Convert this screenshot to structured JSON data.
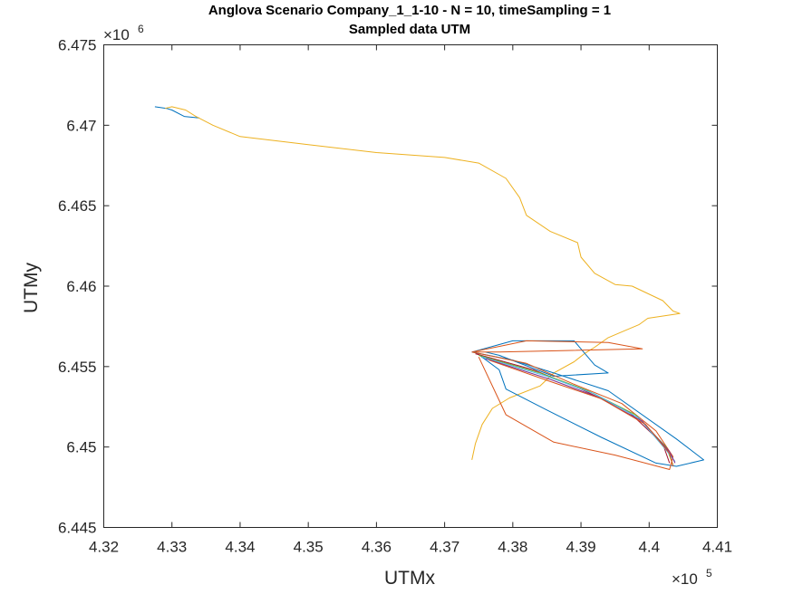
{
  "chart_data": {
    "type": "line",
    "title": "Anglova Scenario Company_1_1-10 - N = 10, timeSampling = 1",
    "subtitle": "Sampled data UTM",
    "xlabel": "UTMx",
    "ylabel": "UTMy",
    "xlim": [
      432000,
      441000
    ],
    "ylim": [
      6445000,
      6475000
    ],
    "x_ticks": [
      432000,
      433000,
      434000,
      435000,
      436000,
      437000,
      438000,
      439000,
      440000,
      441000
    ],
    "x_tick_labels": [
      "4.32",
      "4.33",
      "4.34",
      "4.35",
      "4.36",
      "4.37",
      "4.38",
      "4.39",
      "4.4",
      "4.41"
    ],
    "y_ticks": [
      6445000,
      6450000,
      6455000,
      6460000,
      6465000,
      6470000,
      6475000
    ],
    "y_tick_labels": [
      "6.445",
      "6.45",
      "6.455",
      "6.46",
      "6.465",
      "6.47",
      "6.475"
    ],
    "x_exponent": "×10",
    "x_exponent_power": "5",
    "y_exponent": "×10",
    "y_exponent_power": "6",
    "grid": false,
    "colors": [
      "#0072BD",
      "#D95319",
      "#EDB120",
      "#7E2F8E",
      "#77AC30",
      "#4DBEEE",
      "#A2142F"
    ],
    "series": [
      {
        "color": "#0072BD",
        "x": [
          432750,
          432920,
          433000,
          433180,
          433400
        ],
        "y": [
          6471150,
          6471050,
          6470950,
          6470550,
          6470450
        ]
      },
      {
        "color": "#EDB120",
        "x": [
          432900,
          433000,
          433200,
          433350,
          433600,
          434000,
          435000,
          436000,
          437000,
          437500,
          437900,
          438100,
          438200,
          438550,
          438950,
          439000,
          439200,
          439500,
          439750,
          440200,
          440350,
          440450,
          439980,
          439850,
          439650,
          439400,
          439200,
          439050,
          438900,
          438600,
          438400,
          437950,
          437700,
          437550,
          437450,
          437400
        ],
        "y": [
          6471050,
          6471150,
          6470950,
          6470550,
          6470000,
          6469300,
          6468800,
          6468300,
          6468000,
          6467650,
          6466700,
          6465500,
          6464400,
          6463400,
          6462700,
          6461800,
          6460800,
          6460100,
          6460000,
          6459100,
          6458450,
          6458300,
          6458000,
          6457600,
          6457250,
          6456800,
          6456200,
          6455800,
          6455300,
          6454600,
          6453800,
          6453050,
          6452400,
          6451400,
          6450200,
          6449200
        ]
      },
      {
        "color": "#0072BD",
        "x": [
          437400,
          438000,
          438300,
          438900,
          439200,
          439400,
          438600,
          437800,
          437600
        ],
        "y": [
          6455900,
          6456600,
          6456600,
          6456600,
          6455100,
          6454600,
          6454400,
          6455700,
          6455900
        ]
      },
      {
        "color": "#D95319",
        "x": [
          437400,
          438200,
          439400,
          439900,
          438800,
          437800,
          437400
        ],
        "y": [
          6455900,
          6456600,
          6456500,
          6456100,
          6456000,
          6455900,
          6455900
        ]
      },
      {
        "color": "#0072BD",
        "x": [
          437400,
          438000,
          438600,
          439400,
          440400,
          440800,
          440400,
          440100,
          439300,
          438500,
          437900,
          437800,
          437450
        ],
        "y": [
          6455900,
          6455400,
          6454600,
          6453500,
          6450500,
          6449200,
          6448800,
          6449000,
          6450600,
          6452300,
          6453600,
          6454800,
          6455900
        ]
      },
      {
        "color": "#D95319",
        "x": [
          437400,
          438200,
          438900,
          439600,
          440100,
          440350,
          440300,
          439500,
          438600,
          437900,
          437500
        ],
        "y": [
          6455900,
          6455200,
          6453900,
          6452700,
          6451000,
          6449400,
          6448600,
          6449500,
          6450300,
          6452000,
          6455600
        ]
      },
      {
        "color": "#A2142F",
        "x": [
          437450,
          438300,
          439000,
          439700,
          440200,
          440300
        ],
        "y": [
          6455800,
          6454800,
          6453600,
          6452200,
          6450200,
          6449000
        ]
      },
      {
        "color": "#77AC30",
        "x": [
          437500,
          438400,
          439100,
          439800,
          440250,
          440350
        ],
        "y": [
          6455700,
          6454600,
          6453500,
          6452000,
          6450000,
          6448900
        ]
      },
      {
        "color": "#4DBEEE",
        "x": [
          437550,
          438500,
          439200,
          439850,
          440250,
          440380
        ],
        "y": [
          6455600,
          6454400,
          6453300,
          6451800,
          6449800,
          6449100
        ]
      },
      {
        "color": "#7E2F8E",
        "x": [
          437600,
          438550,
          439250,
          439900,
          440300,
          440380
        ],
        "y": [
          6455500,
          6454200,
          6453100,
          6451600,
          6449700,
          6449000
        ]
      },
      {
        "color": "#D95319",
        "x": [
          437650,
          438600,
          439300,
          439950,
          440300,
          440350
        ],
        "y": [
          6455400,
          6454000,
          6453000,
          6451400,
          6449600,
          6448800
        ]
      }
    ]
  }
}
